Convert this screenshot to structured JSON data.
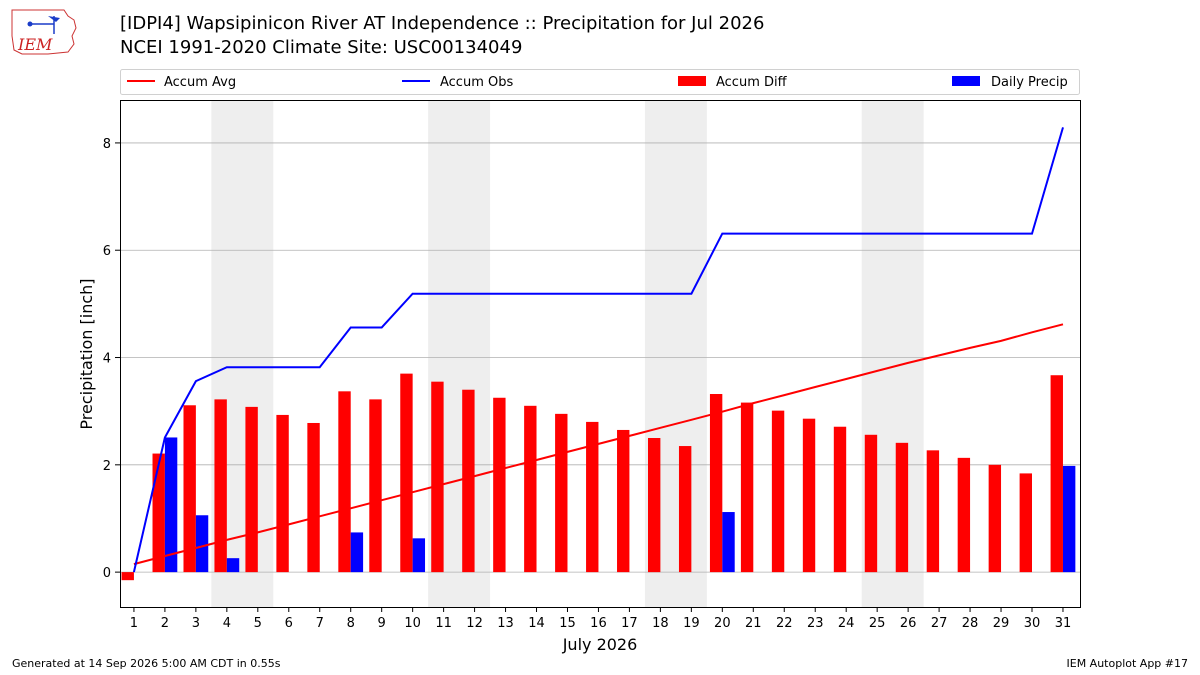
{
  "header": {
    "title_line1": "[IDPI4] Wapsipinicon River  AT Independence :: Precipitation for Jul 2026",
    "title_line2": "NCEI 1991-2020 Climate Site: USC00134049",
    "logo_text": "IEM"
  },
  "footer": {
    "generated": "Generated at 14 Sep 2026 5:00 AM CDT in 0.55s",
    "app": "IEM Autoplot App #17"
  },
  "colors": {
    "accum_avg": "#ff0000",
    "accum_obs": "#0000ff",
    "accum_diff": "#ff0000",
    "daily_precip": "#0000ff",
    "weekend_shade": "#eeeeee",
    "grid": "#b0b0b0"
  },
  "chart_data": {
    "type": "bar",
    "xlabel": "July 2026",
    "ylabel": "Precipitation [inch]",
    "ylim": [
      -0.65,
      8.8
    ],
    "yticks": [
      0,
      2,
      4,
      6,
      8
    ],
    "grid": "horizontal",
    "legend_placement": "top",
    "days": [
      1,
      2,
      3,
      4,
      5,
      6,
      7,
      8,
      9,
      10,
      11,
      12,
      13,
      14,
      15,
      16,
      17,
      18,
      19,
      20,
      21,
      22,
      23,
      24,
      25,
      26,
      27,
      28,
      29,
      30,
      31
    ],
    "shaded_days": [
      [
        4,
        5
      ],
      [
        11,
        12
      ],
      [
        18,
        19
      ],
      [
        25,
        26
      ]
    ],
    "series": [
      {
        "name": "Accum Avg",
        "kind": "line",
        "values": [
          0.15,
          0.3,
          0.45,
          0.6,
          0.74,
          0.89,
          1.04,
          1.19,
          1.34,
          1.49,
          1.64,
          1.79,
          1.94,
          2.09,
          2.24,
          2.39,
          2.54,
          2.69,
          2.84,
          2.99,
          3.15,
          3.3,
          3.45,
          3.6,
          3.75,
          3.9,
          4.04,
          4.18,
          4.31,
          4.47,
          4.62
        ]
      },
      {
        "name": "Accum Obs",
        "kind": "line",
        "values": [
          0.0,
          2.51,
          3.56,
          3.82,
          3.82,
          3.82,
          3.82,
          4.56,
          4.56,
          5.19,
          5.19,
          5.19,
          5.19,
          5.19,
          5.19,
          5.19,
          5.19,
          5.19,
          5.19,
          6.31,
          6.31,
          6.31,
          6.31,
          6.31,
          6.31,
          6.31,
          6.31,
          6.31,
          6.31,
          6.31,
          8.29
        ]
      },
      {
        "name": "Accum Diff",
        "kind": "bar",
        "values": [
          -0.15,
          2.21,
          3.11,
          3.22,
          3.08,
          2.93,
          2.78,
          3.37,
          3.22,
          3.7,
          3.55,
          3.4,
          3.25,
          3.1,
          2.95,
          2.8,
          2.65,
          2.5,
          2.35,
          3.32,
          3.16,
          3.01,
          2.86,
          2.71,
          2.56,
          2.41,
          2.27,
          2.13,
          2.0,
          1.84,
          3.67
        ]
      },
      {
        "name": "Daily Precip",
        "kind": "bar",
        "values": [
          0.0,
          2.51,
          1.06,
          0.26,
          0,
          0,
          0,
          0.74,
          0,
          0.63,
          0,
          0,
          0,
          0,
          0,
          0,
          0,
          0,
          0,
          1.12,
          0,
          0,
          0,
          0,
          0,
          0,
          0,
          0,
          0,
          0,
          1.98
        ]
      }
    ]
  }
}
